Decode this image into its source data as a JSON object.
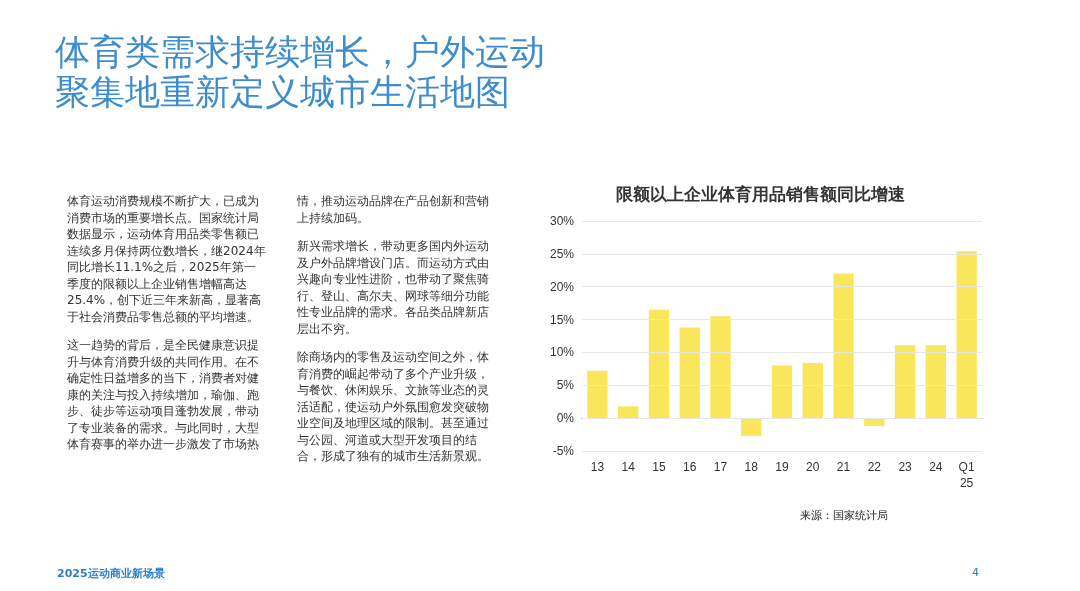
{
  "chart_data": {
    "type": "bar",
    "title": "限额以上企业体育用品销售额同比增速",
    "categories": [
      "13",
      "14",
      "15",
      "16",
      "17",
      "18",
      "19",
      "20",
      "21",
      "22",
      "23",
      "24",
      "Q1\n25"
    ],
    "values": [
      7.2,
      1.8,
      16.5,
      13.8,
      15.5,
      -2.7,
      8.0,
      8.4,
      22.0,
      -1.2,
      11.1,
      11.1,
      25.4
    ],
    "color": "#fae65a",
    "ylim": [
      -5,
      30
    ],
    "yticks": [
      {
        "value": -5,
        "label": "-5%"
      },
      {
        "value": 0,
        "label": "0%"
      },
      {
        "value": 5,
        "label": "5%"
      },
      {
        "value": 10,
        "label": "10%"
      },
      {
        "value": 15,
        "label": "15%"
      },
      {
        "value": 20,
        "label": "20%"
      },
      {
        "value": 25,
        "label": "25%"
      },
      {
        "value": 30,
        "label": "30%"
      }
    ],
    "grid": "y",
    "annotations": [
      "体育类需求持续增长，户外运动聚集地重新定义城市生活地图",
      "体育运动消费规模不断扩大，已成为消费市场的重要增长点。国家统计局数据显示，运动体育用品类零售额已连续多月保持两位数增长，继2024年同比增长11.1%之后，2025年第一季度的限额以上企业销售增幅高达25.4%，创下近三年来新高，显著高于社会消费品零售总额的平均增速。",
      "这一趋势的背后，是全民健康意识提升与体育消费升级的共同作用。在不确定性日益增多的当下，消费者对健康的关注与投入持续增加，瑜伽、跑步、徒步等运动项目蓬勃发展，带动了专业装备的需求。与此同时，大型体育赛事的举办进一步激发了市场热情，推动运动品牌在产品创新和营销上持续加码。",
      "新兴需求增长，带动更多国内外运动及户外品牌增设门店。而运动方式由兴趣向专业性进阶，也带动了聚焦骑行、登山、高尔夫、网球等细分功能性专业品牌的需求。各品类品牌新店层出不穷。",
      "除商场内的零售及运动空间之外，体育消费的崛起带动了多个产业升级，与餐饮、休闲娱乐、文旅等业态的灵活适配，使运动户外氛围愈发突破物业空间及地理区域的限制。甚至通过与公园、河道或大型开发项目的结合，形成了独有的城市生活新景观。",
      "来源：国家统计局",
      "2025运动商业新场景",
      "4"
    ]
  }
}
